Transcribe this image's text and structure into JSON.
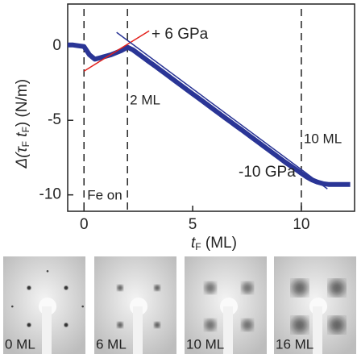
{
  "chart_data": {
    "type": "line",
    "x_label": [
      "t",
      "F",
      " (ML)"
    ],
    "y_label": [
      "Δ(τ",
      "F",
      " t",
      "F",
      ") (N/m)"
    ],
    "xlim": [
      -0.75,
      12.45
    ],
    "ylim": [
      -11.1,
      2.8
    ],
    "xticks": [
      0,
      5,
      10
    ],
    "yticks": [
      0,
      -5,
      -10
    ],
    "x": [
      -0.75,
      -0.5,
      -0.25,
      0,
      0.25,
      0.5,
      0.75,
      1,
      1.25,
      1.5,
      1.75,
      2,
      2.25,
      2.5,
      2.75,
      3,
      3.25,
      3.5,
      3.75,
      4,
      4.25,
      4.5,
      4.75,
      5,
      5.25,
      5.5,
      5.75,
      6,
      6.25,
      6.5,
      6.75,
      7,
      7.25,
      7.5,
      7.75,
      8,
      8.25,
      8.5,
      8.75,
      9,
      9.25,
      9.5,
      9.75,
      10,
      10.25,
      10.5,
      10.75,
      11,
      11.25,
      11.5,
      11.75,
      12,
      12.25
    ],
    "series": [
      {
        "color": "#2a3596",
        "values": [
          0.05,
          0.05,
          0,
          -0.05,
          -0.6,
          -0.9,
          -0.8,
          -0.7,
          -0.6,
          -0.45,
          -0.3,
          -0.1,
          -0.27,
          -0.54,
          -0.81,
          -1.08,
          -1.34,
          -1.61,
          -1.88,
          -2.15,
          -2.42,
          -2.69,
          -2.96,
          -3.23,
          -3.49,
          -3.76,
          -4.03,
          -4.3,
          -4.57,
          -4.84,
          -5.11,
          -5.38,
          -5.64,
          -5.91,
          -6.18,
          -6.45,
          -6.72,
          -6.99,
          -7.26,
          -7.53,
          -7.8,
          -8.05,
          -8.3,
          -8.55,
          -8.8,
          -9.0,
          -9.15,
          -9.25,
          -9.3,
          -9.3,
          -9.3,
          -9.3,
          -9.3
        ]
      }
    ],
    "fit_lines": [
      {
        "name": "+ 6 GPa",
        "color": "#e3201b",
        "x": [
          0,
          3
        ],
        "values": [
          -1.7,
          1.0
        ]
      },
      {
        "name": "-10 GPa",
        "color": "#2a3596",
        "x": [
          1.5,
          11.2
        ],
        "values": [
          0.9,
          -9.6
        ]
      }
    ],
    "markers": [
      {
        "x": 0,
        "label": "Fe on"
      },
      {
        "x": 2,
        "label": "2 ML"
      },
      {
        "x": 10,
        "label": "10 ML"
      }
    ]
  },
  "leed_images": [
    "0 ML",
    "6 ML",
    "10 ML",
    "16 ML"
  ]
}
